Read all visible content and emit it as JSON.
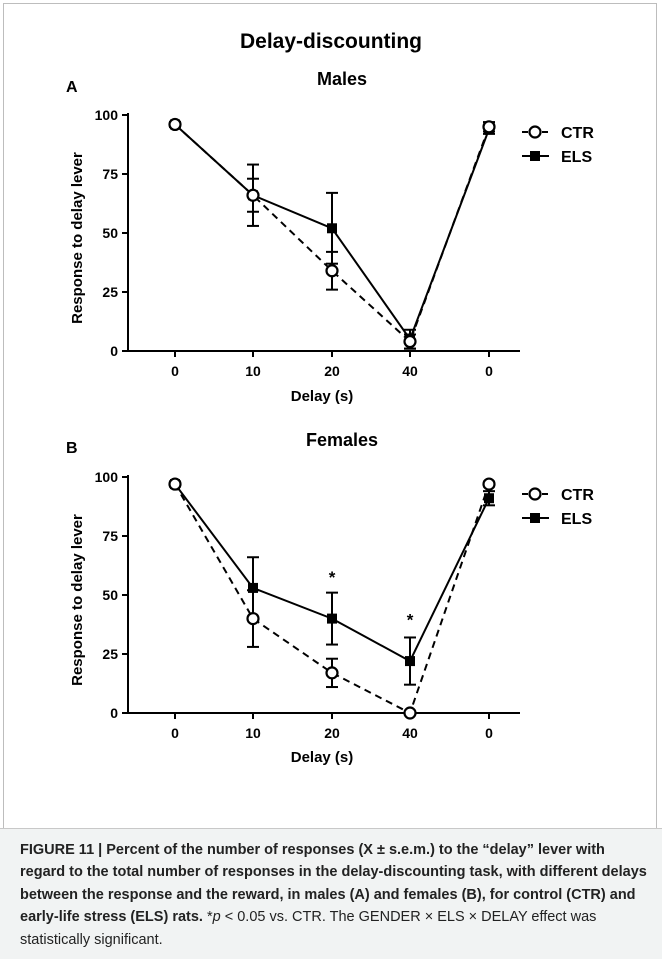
{
  "figure": {
    "title": "Delay-discounting"
  },
  "chart_data": [
    {
      "type": "line",
      "panel": "A",
      "title": "Males",
      "xlabel": "Delay (s)",
      "ylabel": "Response to delay lever",
      "categories": [
        "0",
        "10",
        "20",
        "40",
        "0"
      ],
      "ylim": [
        0,
        100
      ],
      "yticks": [
        "0",
        "25",
        "50",
        "75",
        "100"
      ],
      "legend_position": "right",
      "series": [
        {
          "name": "CTR",
          "marker": "open-circle",
          "line": "dashed",
          "values": [
            96,
            66,
            34,
            4,
            95
          ],
          "errors": [
            1,
            7,
            8,
            3,
            2
          ]
        },
        {
          "name": "ELS",
          "marker": "filled-square",
          "line": "solid",
          "values": [
            96,
            66,
            52,
            5,
            94
          ],
          "errors": [
            1,
            13,
            15,
            4,
            2
          ]
        }
      ],
      "annotations": []
    },
    {
      "type": "line",
      "panel": "B",
      "title": "Females",
      "xlabel": "Delay (s)",
      "ylabel": "Response to delay lever",
      "categories": [
        "0",
        "10",
        "20",
        "40",
        "0"
      ],
      "ylim": [
        0,
        100
      ],
      "yticks": [
        "0",
        "25",
        "50",
        "75",
        "100"
      ],
      "legend_position": "right",
      "series": [
        {
          "name": "CTR",
          "marker": "open-circle",
          "line": "dashed",
          "values": [
            97,
            40,
            17,
            0,
            97
          ],
          "errors": [
            1,
            12,
            6,
            0,
            1
          ]
        },
        {
          "name": "ELS",
          "marker": "filled-square",
          "line": "solid",
          "values": [
            97,
            53,
            40,
            22,
            91
          ],
          "errors": [
            1,
            13,
            11,
            10,
            3
          ]
        }
      ],
      "annotations": [
        {
          "text": "*",
          "category_index": 2,
          "y": 58
        },
        {
          "text": "*",
          "category_index": 3,
          "y": 40
        }
      ]
    }
  ],
  "caption": {
    "label": "FIGURE 11 | Percent of the number of responses (X ± s.e.m.) to the “delay” lever with regard to the total number of responses in the delay-discounting task, with different delays between the response and the reward, in males (A) and females (B), for control (CTR) and early-life stress (ELS) rats.",
    "star": " *",
    "p": "p",
    "rest": " < 0.05 vs. CTR. The GENDER × ELS × DELAY effect was statistically significant."
  }
}
